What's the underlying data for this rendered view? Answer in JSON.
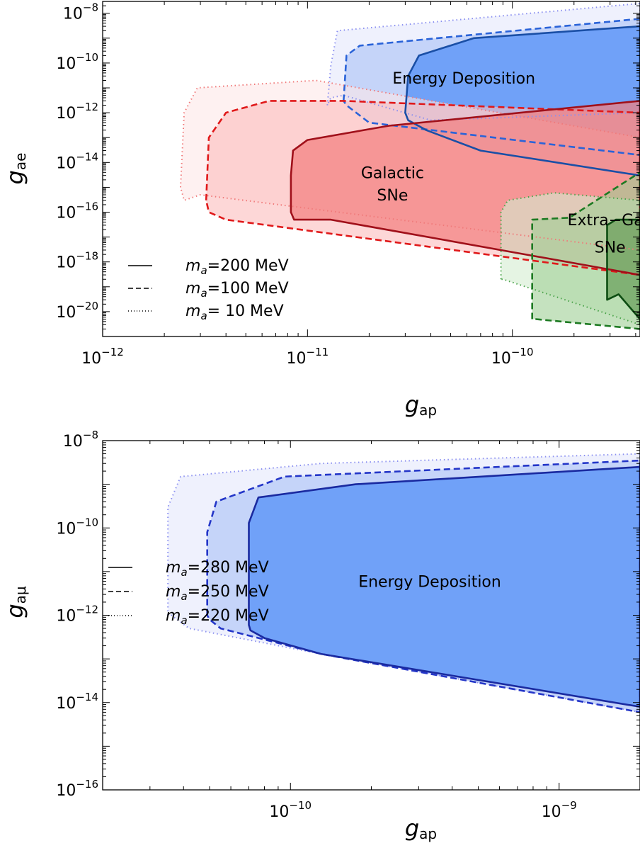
{
  "chart_data": [
    {
      "type": "area",
      "xlabel": "g",
      "xlabel_sub": "ap",
      "ylabel": "g",
      "ylabel_sub": "ae",
      "x_scale": "log",
      "y_scale": "log",
      "xlim": [
        1e-12,
        4.2e-10
      ],
      "ylim": [
        1e-21,
        3e-08
      ],
      "x_ticks": [
        {
          "value": 1e-12,
          "base": "10",
          "exp": "−12"
        },
        {
          "value": 1e-11,
          "base": "10",
          "exp": "−11"
        },
        {
          "value": 1e-10,
          "base": "10",
          "exp": "−10"
        }
      ],
      "y_ticks": [
        {
          "value": 1e-08,
          "base": "10",
          "exp": "−8"
        },
        {
          "value": 1e-10,
          "base": "10",
          "exp": "−10"
        },
        {
          "value": 1e-12,
          "base": "10",
          "exp": "−12"
        },
        {
          "value": 1e-14,
          "base": "10",
          "exp": "−14"
        },
        {
          "value": 1e-16,
          "base": "10",
          "exp": "−16"
        },
        {
          "value": 1e-18,
          "base": "10",
          "exp": "−18"
        },
        {
          "value": 1e-20,
          "base": "10",
          "exp": "−20"
        }
      ],
      "annotations": [
        {
          "text": "Energy Deposition",
          "x": 5.8e-11,
          "y": 2.5e-11
        },
        {
          "text": "Galactic",
          "x": 2.6e-11,
          "y": 4e-15
        },
        {
          "text": "SNe",
          "x": 2.6e-11,
          "y": 5e-16
        },
        {
          "text": "Extra−Gal.",
          "x": 3e-10,
          "y": 5e-17
        },
        {
          "text": "SNe",
          "x": 3e-10,
          "y": 4e-18
        }
      ],
      "legend": {
        "position": "bottom-left",
        "entries": [
          {
            "style": "solid",
            "m": "m",
            "sub": "a",
            "label": "=200 MeV"
          },
          {
            "style": "dashed",
            "m": "m",
            "sub": "a",
            "label": "=100 MeV"
          },
          {
            "style": "dotted",
            "m": "m",
            "sub": "a",
            "label": "=   10 MeV"
          }
        ]
      },
      "series": [
        {
          "group": "Energy Deposition",
          "mass_MeV": 10,
          "style": "dotted",
          "fill": "#e5e8fb",
          "line": "#8a8ff0",
          "x": [
            1.25e-11,
            1.3e-11,
            1.4e-11,
            4.2e-10,
            4.2e-10,
            4e-11,
            1.5e-11,
            1.3e-11
          ],
          "y": [
            2e-12,
            8e-11,
            2e-09,
            2.5e-08,
            1e-12,
            5e-13,
            5e-12,
            4e-12
          ]
        },
        {
          "group": "Energy Deposition",
          "mass_MeV": 100,
          "style": "dashed",
          "fill": "#a9c2f7",
          "line": "#2a63d8",
          "x": [
            1.5e-11,
            1.55e-11,
            1.8e-11,
            4.2e-10,
            4.2e-10,
            2e-11,
            1.55e-11
          ],
          "y": [
            3e-12,
            2e-10,
            5e-10,
            6e-09,
            2e-14,
            4e-13,
            2e-12
          ]
        },
        {
          "group": "Energy Deposition",
          "mass_MeV": 200,
          "style": "solid",
          "fill": "#4f8ef7",
          "line": "#1a4fa6",
          "x": [
            3e-11,
            3.1e-11,
            3.5e-11,
            6.5e-11,
            4.2e-10,
            4.2e-10,
            7e-11,
            3.8e-11,
            3.1e-11
          ],
          "y": [
            1e-12,
            3e-11,
            2e-10,
            1e-09,
            3e-09,
            3e-15,
            3e-14,
            2e-13,
            5e-13
          ]
        },
        {
          "group": "Galactic SNe",
          "mass_MeV": 10,
          "style": "dotted",
          "fill": "#fde7e7",
          "line": "#f07a7a",
          "x": [
            2.4e-12,
            2.5e-12,
            2.9e-12,
            1.1e-11,
            4.2e-10,
            4.2e-10,
            3e-12,
            2.5e-12
          ],
          "y": [
            1e-15,
            1e-12,
            1e-11,
            2e-11,
            1e-13,
            3e-18,
            5e-16,
            3e-16
          ]
        },
        {
          "group": "Galactic SNe",
          "mass_MeV": 100,
          "style": "dashed",
          "fill": "#fbbcbc",
          "line": "#e0191a",
          "x": [
            3.2e-12,
            3.3e-12,
            4e-12,
            6.5e-12,
            1.5e-11,
            4.2e-10,
            4.2e-10,
            4e-12,
            3.3e-12
          ],
          "y": [
            3e-16,
            1e-13,
            1e-12,
            3e-12,
            3e-12,
            1e-12,
            3e-19,
            5e-17,
            1e-16
          ]
        },
        {
          "group": "Galactic SNe",
          "mass_MeV": 200,
          "style": "solid",
          "fill": "#f27f7f",
          "line": "#a0101a",
          "x": [
            8.3e-12,
            8.3e-12,
            8.5e-12,
            1e-11,
            2.5e-11,
            4.2e-10,
            4.2e-10,
            1.3e-11,
            8.6e-12
          ],
          "y": [
            1e-16,
            3e-15,
            3e-14,
            8e-14,
            3e-13,
            3e-12,
            3e-19,
            5e-17,
            5e-17
          ]
        },
        {
          "group": "Extra-Gal. SNe",
          "mass_MeV": 10,
          "style": "dotted",
          "fill": "#d4ecd0",
          "line": "#4aa34a",
          "x": [
            8.8e-11,
            8.8e-11,
            9.5e-11,
            1.6e-10,
            4.2e-10,
            4.2e-10,
            9e-11
          ],
          "y": [
            2e-19,
            1e-16,
            3e-16,
            6e-16,
            3e-16,
            3e-21,
            2e-19
          ]
        },
        {
          "group": "Extra-Gal. SNe",
          "mass_MeV": 100,
          "style": "dashed",
          "fill": "#9fcf94",
          "line": "#1d7a22",
          "x": [
            1.25e-10,
            1.25e-10,
            1.9e-10,
            4.2e-10,
            4.2e-10,
            1.3e-10
          ],
          "y": [
            5e-21,
            5e-17,
            6e-17,
            4e-15,
            2e-21,
            5e-21
          ]
        },
        {
          "group": "Extra-Gal. SNe",
          "mass_MeV": 200,
          "style": "solid",
          "fill": "#6aa05c",
          "line": "#0d4d12",
          "x": [
            2.9e-10,
            2.9e-10,
            3.2e-10,
            4.2e-10,
            4.2e-10,
            3.3e-10
          ],
          "y": [
            3e-20,
            3e-17,
            5e-17,
            5e-17,
            5e-21,
            5e-20
          ]
        }
      ]
    },
    {
      "type": "area",
      "xlabel": "g",
      "xlabel_sub": "ap",
      "ylabel": "g",
      "ylabel_sub": "aμ",
      "x_scale": "log",
      "y_scale": "log",
      "xlim": [
        2e-11,
        2e-09
      ],
      "ylim": [
        1e-16,
        1e-08
      ],
      "x_ticks": [
        {
          "value": 1e-10,
          "base": "10",
          "exp": "−10"
        },
        {
          "value": 1e-09,
          "base": "10",
          "exp": "−9"
        }
      ],
      "y_ticks": [
        {
          "value": 1e-08,
          "base": "10",
          "exp": "−8"
        },
        {
          "value": 1e-10,
          "base": "10",
          "exp": "−10"
        },
        {
          "value": 1e-12,
          "base": "10",
          "exp": "−12"
        },
        {
          "value": 1e-14,
          "base": "10",
          "exp": "−14"
        },
        {
          "value": 1e-16,
          "base": "10",
          "exp": "−16"
        }
      ],
      "annotations": [
        {
          "text": "Energy Deposition",
          "x": 3.3e-10,
          "y": 6e-12
        }
      ],
      "legend": {
        "position": "bottom-left",
        "entries": [
          {
            "style": "solid",
            "m": "m",
            "sub": "a",
            "label": "=280 MeV"
          },
          {
            "style": "dashed",
            "m": "m",
            "sub": "a",
            "label": "=250 MeV"
          },
          {
            "style": "dotted",
            "m": "m",
            "sub": "a",
            "label": "=220 MeV"
          }
        ]
      },
      "series": [
        {
          "mass_MeV": 220,
          "style": "dotted",
          "fill": "#e5e8fb",
          "line": "#8a8ff0",
          "x": [
            3.5e-11,
            3.5e-11,
            3.9e-11,
            1.3e-10,
            2e-09,
            2e-09,
            1.3e-10,
            4.2e-11,
            3.6e-11
          ],
          "y": [
            1e-12,
            3e-10,
            1.5e-09,
            3e-09,
            5e-09,
            6e-15,
            1.3e-13,
            5e-13,
            1e-12
          ]
        },
        {
          "mass_MeV": 250,
          "style": "dashed",
          "fill": "#a9c2f7",
          "line": "#2436c8",
          "x": [
            4.9e-11,
            4.9e-11,
            5.3e-11,
            9.5e-11,
            2e-09,
            2e-09,
            1.3e-10,
            5.5e-11,
            5e-11
          ],
          "y": [
            1e-12,
            8e-11,
            4e-10,
            1.5e-09,
            3.5e-09,
            6e-15,
            1.3e-13,
            5e-13,
            8e-13
          ]
        },
        {
          "mass_MeV": 280,
          "style": "solid",
          "fill": "#4f8ef7",
          "line": "#1a2aa0",
          "x": [
            7e-11,
            7e-11,
            7.6e-11,
            1.75e-10,
            2e-09,
            2e-09,
            1.3e-10,
            8e-11,
            7.1e-11
          ],
          "y": [
            6e-13,
            1.3e-10,
            5e-10,
            1e-09,
            2.5e-09,
            8e-15,
            1.3e-13,
            3e-13,
            4.5e-13
          ]
        }
      ]
    }
  ]
}
